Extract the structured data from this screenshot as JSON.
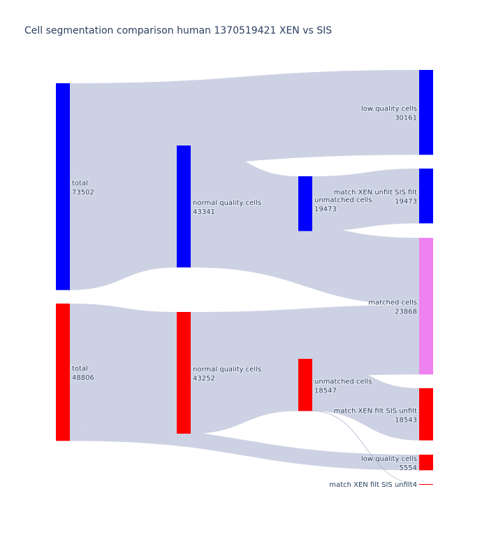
{
  "chart_data": {
    "type": "sankey",
    "title": "Cell segmentation comparison human 1370519421 XEN vs SIS",
    "link_color": "#ccd2e3",
    "nodes": [
      {
        "id": "total_xen",
        "label": "total",
        "value": "73502",
        "color": "#0000ff",
        "column": 0
      },
      {
        "id": "total_sis",
        "label": "total",
        "value": "48806",
        "color": "#ff0000",
        "column": 0
      },
      {
        "id": "nq_xen",
        "label": "normal quality cells",
        "value": "43341",
        "color": "#0000ff",
        "column": 1
      },
      {
        "id": "nq_sis",
        "label": "normal quality cells",
        "value": "43252",
        "color": "#ff0000",
        "column": 1
      },
      {
        "id": "um_xen",
        "label": "unmatched cells",
        "value": "19473",
        "color": "#0000ff",
        "column": 2
      },
      {
        "id": "um_sis",
        "label": "unmatched cells",
        "value": "18547",
        "color": "#ff0000",
        "column": 2
      },
      {
        "id": "lq_xen",
        "label": "low quality cells",
        "value": "30161",
        "color": "#0000ff",
        "column": 3
      },
      {
        "id": "mx_unfilt",
        "label": "match XEN unfilt SIS filt",
        "value": "19473",
        "color": "#0000ff",
        "column": 3
      },
      {
        "id": "matched",
        "label": "matched cells",
        "value": "23868",
        "color": "#ee82ee",
        "column": 3
      },
      {
        "id": "mx_filt",
        "label": "match XEN filt SIS unfilt",
        "value": "18543",
        "color": "#ff0000",
        "column": 3
      },
      {
        "id": "lq_sis",
        "label": "low quality cells",
        "value": "5554",
        "color": "#ff0000",
        "column": 3
      },
      {
        "id": "mx_filt4",
        "label": "match XEN filt SIS unfilt4",
        "value": "",
        "color": "#ff0000",
        "column": 3
      }
    ],
    "links": [
      {
        "source": "total_xen",
        "target": "lq_xen",
        "value": 30161
      },
      {
        "source": "total_xen",
        "target": "nq_xen",
        "value": 43341
      },
      {
        "source": "nq_xen",
        "target": "um_xen",
        "value": 19473
      },
      {
        "source": "nq_xen",
        "target": "matched",
        "value": 23868
      },
      {
        "source": "um_xen",
        "target": "mx_unfilt",
        "value": 19473
      },
      {
        "source": "total_sis",
        "target": "nq_sis",
        "value": 43252
      },
      {
        "source": "total_sis",
        "target": "lq_sis",
        "value": 5554
      },
      {
        "source": "nq_sis",
        "target": "matched",
        "value": 24705
      },
      {
        "source": "nq_sis",
        "target": "um_sis",
        "value": 18547
      },
      {
        "source": "um_sis",
        "target": "mx_filt",
        "value": 18543
      },
      {
        "source": "um_sis",
        "target": "mx_filt4",
        "value": 4
      }
    ]
  }
}
